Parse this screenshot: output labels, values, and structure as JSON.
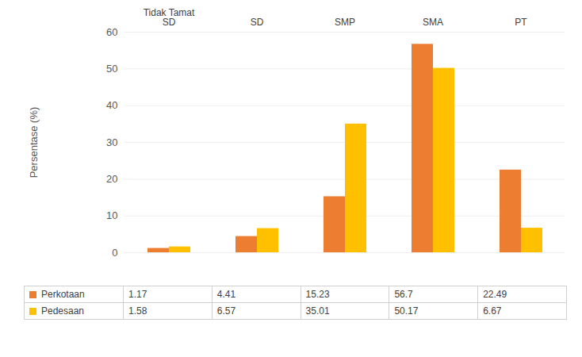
{
  "chart_data": {
    "type": "bar",
    "y_label": "Persentase (%)",
    "categories": [
      "Tidak Tamat SD",
      "SD",
      "SMP",
      "SMA",
      "PT"
    ],
    "series": [
      {
        "name": "Perkotaan",
        "color": "#ed7d31",
        "values": [
          1.17,
          4.41,
          15.23,
          56.7,
          22.49
        ]
      },
      {
        "name": "Pedesaan",
        "color": "#ffc000",
        "values": [
          1.58,
          6.57,
          35.01,
          50.17,
          6.67
        ]
      }
    ],
    "ylim": [
      0,
      60
    ],
    "yticks": [
      0,
      10,
      20,
      30,
      40,
      50,
      60
    ],
    "grid": true,
    "legend": "bottom"
  }
}
